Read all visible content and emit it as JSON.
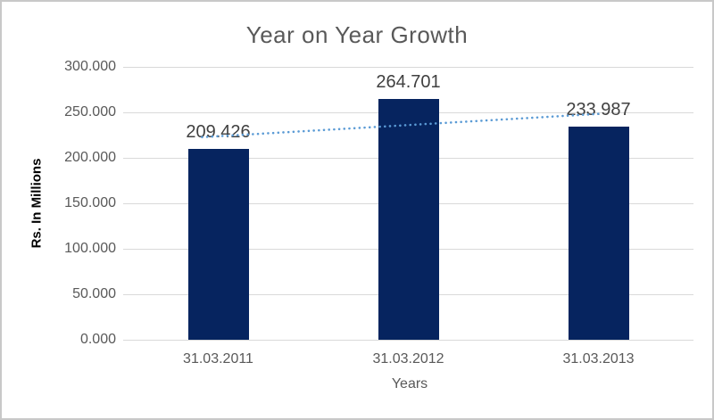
{
  "chart_data": {
    "type": "bar",
    "title": "Year on Year Growth",
    "categories": [
      "31.03.2011",
      "31.03.2012",
      "31.03.2013"
    ],
    "values": [
      209.426,
      264.701,
      233.987
    ],
    "data_labels": [
      "209.426",
      "264.701",
      "233.987"
    ],
    "xlabel": "Years",
    "ylabel": "Rs. In Millions",
    "ylim": [
      0,
      300
    ],
    "ytick_labels": [
      "0.000",
      "50.000",
      "100.000",
      "150.000",
      "200.000",
      "250.000",
      "300.000"
    ],
    "grid": true,
    "legend": "none",
    "trendline": {
      "type": "linear",
      "style": "dotted"
    },
    "colors": {
      "bar": "#06245F",
      "trendline": "#5B9BD5",
      "gridline": "#D9D9D9",
      "axis_line": "#D9D9D9",
      "title_text": "#595959",
      "tick_text": "#595959",
      "data_label_text": "#404040",
      "axis_title_text": "#000000",
      "chart_border": "#C8C8C8",
      "background": "#FFFFFF"
    }
  }
}
